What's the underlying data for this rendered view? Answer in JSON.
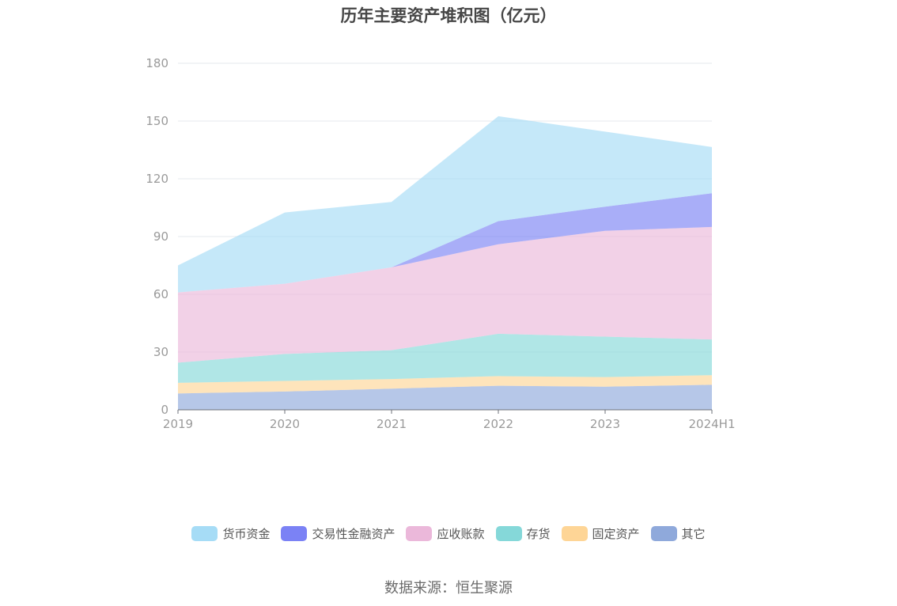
{
  "title": "历年主要资产堆积图（亿元）",
  "source": "数据来源：恒生聚源",
  "chart_data": {
    "type": "area",
    "stacked": true,
    "title": "历年主要资产堆积图（亿元）",
    "categories": [
      "2019",
      "2020",
      "2021",
      "2022",
      "2023",
      "2024H1"
    ],
    "ylim": [
      0,
      180
    ],
    "yticks": [
      0,
      30,
      60,
      90,
      120,
      150,
      180
    ],
    "grid": true,
    "legend_position": "bottom",
    "series": [
      {
        "name": "其它",
        "color": "#8fa9db",
        "values": [
          8.5,
          9.5,
          11,
          12.5,
          12,
          13
        ]
      },
      {
        "name": "固定资产",
        "color": "#fed596",
        "values": [
          5.5,
          5.5,
          5,
          5,
          5,
          5
        ]
      },
      {
        "name": "存货",
        "color": "#85d8d9",
        "values": [
          10.5,
          14,
          15,
          22,
          21,
          18.5
        ]
      },
      {
        "name": "应收账款",
        "color": "#ebb8da",
        "values": [
          36.5,
          36.5,
          43,
          46.5,
          55,
          58.5
        ]
      },
      {
        "name": "交易性金融资产",
        "color": "#7b82f5",
        "values": [
          0,
          0,
          0,
          12,
          12.5,
          17.5
        ]
      },
      {
        "name": "货币资金",
        "color": "#a6dcf6",
        "values": [
          14,
          37,
          34,
          54.5,
          39,
          24
        ]
      }
    ]
  }
}
